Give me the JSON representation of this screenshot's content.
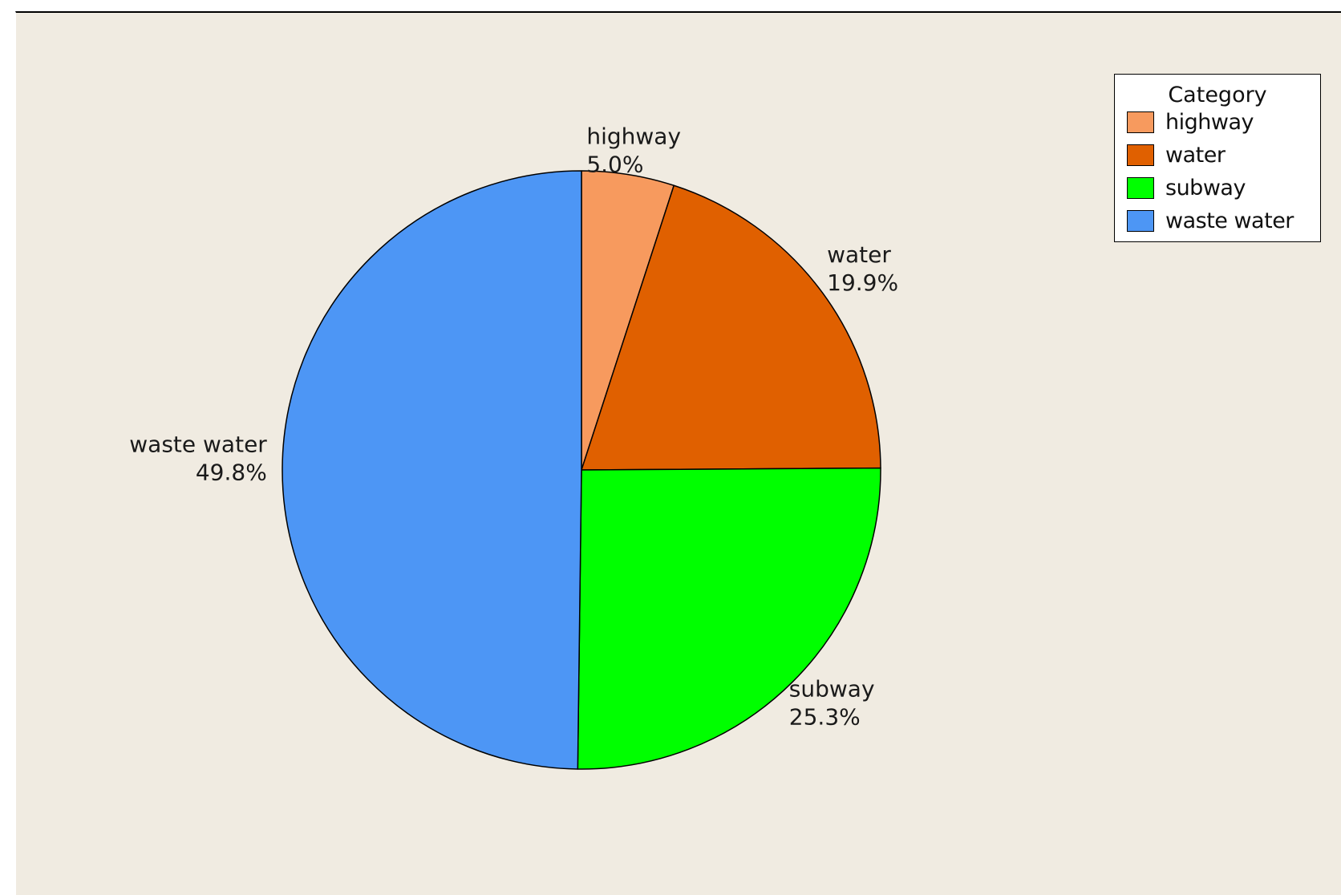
{
  "chart_data": {
    "type": "pie",
    "title": "",
    "legend": {
      "title": "Category",
      "placement": "top-right"
    },
    "slices": [
      {
        "label": "highway",
        "value": 5.0,
        "display": "5.0%",
        "color": "#f79a5e"
      },
      {
        "label": "water",
        "value": 19.9,
        "display": "19.9%",
        "color": "#e06000"
      },
      {
        "label": "subway",
        "value": 25.3,
        "display": "25.3%",
        "color": "#00ff00"
      },
      {
        "label": "waste water",
        "value": 49.8,
        "display": "49.8%",
        "color": "#4d96f5"
      }
    ],
    "start_angle_deg": 0,
    "direction": "clockwise"
  }
}
